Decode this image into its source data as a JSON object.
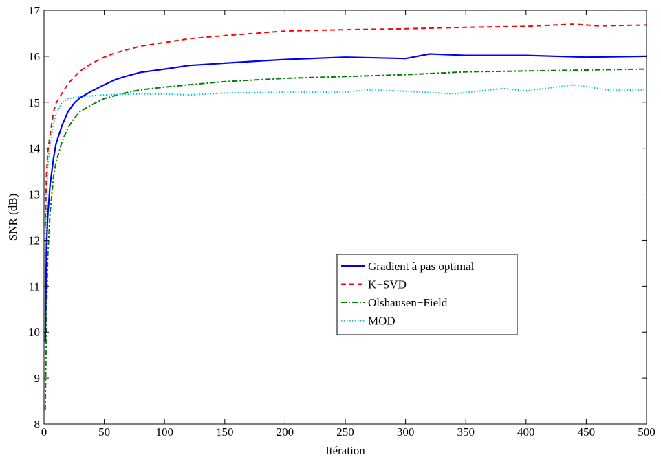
{
  "chart_data": {
    "type": "line",
    "title": "",
    "xlabel": "Itération",
    "ylabel": "SNR (dB)",
    "xlim": [
      0,
      500
    ],
    "ylim": [
      8,
      17
    ],
    "xticks": [
      0,
      50,
      100,
      150,
      200,
      250,
      300,
      350,
      400,
      450,
      500
    ],
    "yticks": [
      8,
      9,
      10,
      11,
      12,
      13,
      14,
      15,
      16,
      17
    ],
    "grid": false,
    "legend_position": "center-right",
    "series": [
      {
        "name": "Gradient à pas optimal",
        "color": "#0000ff",
        "style": "solid",
        "x": [
          1,
          2,
          3,
          5,
          8,
          10,
          15,
          20,
          25,
          30,
          40,
          50,
          60,
          70,
          80,
          100,
          120,
          150,
          180,
          200,
          250,
          300,
          320,
          350,
          400,
          450,
          500
        ],
        "y": [
          9.8,
          11.8,
          12.5,
          13.2,
          13.8,
          14.1,
          14.5,
          14.8,
          14.98,
          15.1,
          15.25,
          15.38,
          15.5,
          15.58,
          15.65,
          15.72,
          15.8,
          15.85,
          15.9,
          15.93,
          15.98,
          15.95,
          16.05,
          16.02,
          16.02,
          15.98,
          16.0
        ]
      },
      {
        "name": "K−SVD",
        "color": "#ff0000",
        "style": "dashed",
        "x": [
          1,
          2,
          3,
          5,
          8,
          10,
          15,
          20,
          25,
          30,
          40,
          50,
          60,
          70,
          80,
          100,
          120,
          150,
          200,
          250,
          300,
          350,
          400,
          440,
          460,
          500
        ],
        "y": [
          12.3,
          13.4,
          13.9,
          14.3,
          14.8,
          14.98,
          15.2,
          15.4,
          15.55,
          15.68,
          15.85,
          15.98,
          16.08,
          16.15,
          16.22,
          16.3,
          16.38,
          16.45,
          16.55,
          16.58,
          16.6,
          16.63,
          16.65,
          16.7,
          16.66,
          16.68
        ]
      },
      {
        "name": "Olshausen−Field",
        "color": "#007f00",
        "style": "dashdot",
        "x": [
          1,
          2,
          3,
          5,
          8,
          10,
          15,
          20,
          25,
          30,
          40,
          50,
          60,
          70,
          80,
          100,
          120,
          150,
          200,
          250,
          300,
          350,
          400,
          450,
          500
        ],
        "y": [
          8.3,
          10.2,
          11.6,
          12.6,
          13.4,
          13.7,
          14.15,
          14.45,
          14.65,
          14.8,
          14.95,
          15.08,
          15.15,
          15.22,
          15.27,
          15.33,
          15.38,
          15.45,
          15.52,
          15.56,
          15.6,
          15.66,
          15.68,
          15.7,
          15.72
        ]
      },
      {
        "name": "MOD",
        "color": "#00bfbf",
        "style": "dotted",
        "x": [
          1,
          2,
          3,
          5,
          8,
          10,
          15,
          20,
          25,
          30,
          40,
          50,
          60,
          80,
          100,
          120,
          150,
          200,
          250,
          270,
          300,
          340,
          380,
          400,
          440,
          470,
          500
        ],
        "y": [
          11.6,
          12.9,
          13.6,
          14.1,
          14.55,
          14.75,
          15.0,
          15.08,
          15.1,
          15.12,
          15.14,
          15.16,
          15.17,
          15.18,
          15.18,
          15.16,
          15.2,
          15.22,
          15.22,
          15.27,
          15.24,
          15.18,
          15.3,
          15.25,
          15.38,
          15.26,
          15.27
        ]
      }
    ]
  }
}
